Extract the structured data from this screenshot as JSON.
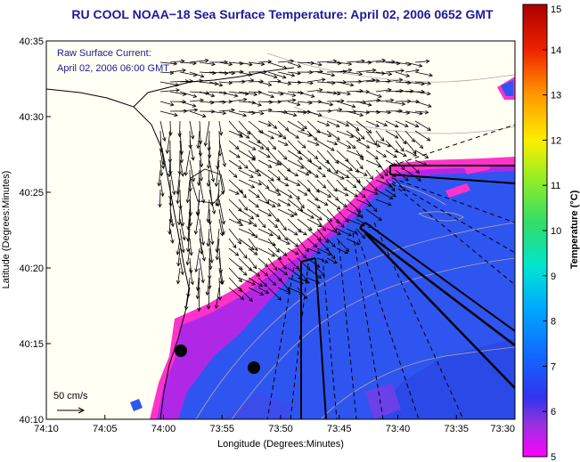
{
  "chart_data": {
    "type": "heatmap",
    "title": "RU COOL  NOAA−18  Sea Surface Temperature:  April 02, 2006 0652 GMT",
    "xlabel": "Longitude (Degrees:Minutes)",
    "ylabel": "Latitude (Degrees:Minutes)",
    "x_ticks": [
      "74:10",
      "74:05",
      "74:00",
      "73:55",
      "73:50",
      "73:45",
      "73:40",
      "73:35",
      "73:30"
    ],
    "y_ticks": [
      "40:35",
      "40:30",
      "40:25",
      "40:20",
      "40:15",
      "40:10"
    ],
    "xlim": [
      -74.1667,
      -73.5
    ],
    "ylim": [
      40.1667,
      40.5833
    ],
    "colorbar": {
      "label": "Temperature (°C)",
      "ticks": [
        "15",
        "14",
        "13",
        "12",
        "11",
        "10",
        "9",
        "8",
        "7",
        "6",
        "5"
      ],
      "range": [
        5,
        15
      ]
    },
    "annotations": {
      "current_label_1": "Raw Surface Current:",
      "current_label_2": "April 02, 2006 06:00 GMT",
      "scale_label": "50 cm/s"
    },
    "grid": false,
    "legend": "colorbar-right"
  },
  "colors": {
    "title": "#1a1a9a",
    "land": "#fffff4",
    "water_warm": "#2f55f0",
    "nearshore": "#c020e0",
    "front": "#ff33cc"
  }
}
